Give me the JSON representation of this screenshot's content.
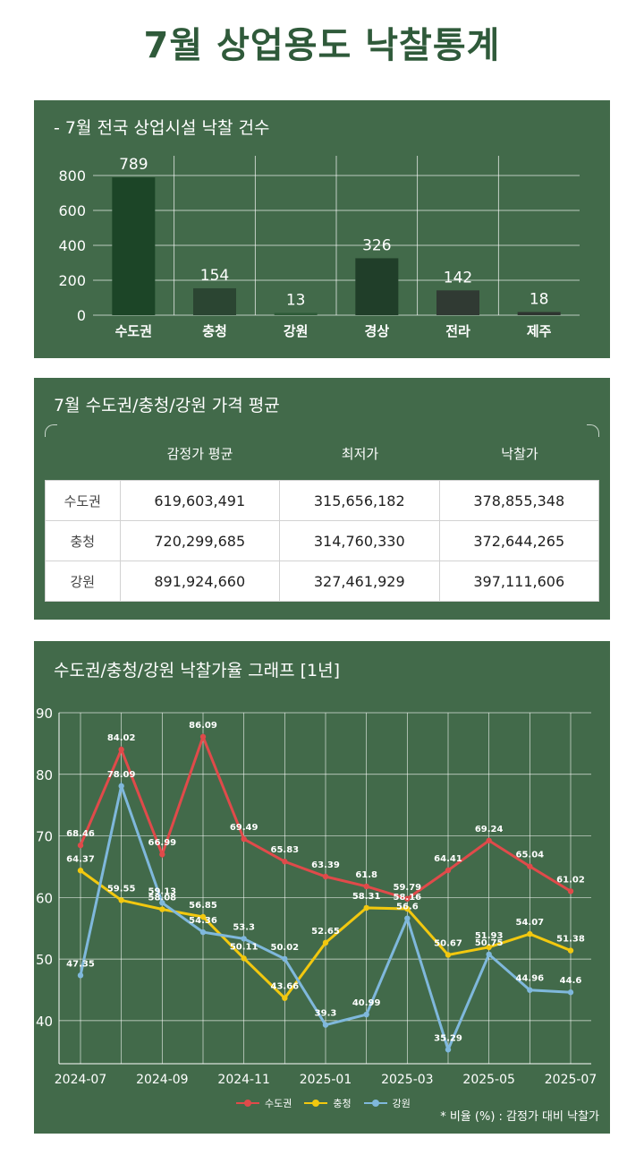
{
  "page_title": "7월 상업용도 낙찰통계",
  "colors": {
    "panel_bg": "#426a4a",
    "title": "#2f5a3a"
  },
  "chart_data": [
    {
      "type": "bar",
      "title": "- 7월 전국 상업시설 낙찰 건수",
      "categories": [
        "수도권",
        "충청",
        "강원",
        "경상",
        "전라",
        "제주"
      ],
      "values": [
        789,
        154,
        13,
        326,
        142,
        18
      ],
      "colors": [
        "#1c4527",
        "#2b4532",
        "#2d5a37",
        "#203e29",
        "#303a33",
        "#2e3530"
      ],
      "ylim": [
        0,
        800
      ],
      "yticks": [
        0,
        200,
        400,
        600,
        800
      ],
      "grid": true
    },
    {
      "type": "table",
      "title": "7월 수도권/충청/강원 가격 평균",
      "columns": [
        "",
        "감정가 평균",
        "최저가",
        "낙찰가"
      ],
      "rows": [
        [
          "수도권",
          "619,603,491",
          "315,656,182",
          "378,855,348"
        ],
        [
          "충청",
          "720,299,685",
          "314,760,330",
          "372,644,265"
        ],
        [
          "강원",
          "891,924,660",
          "327,461,929",
          "397,111,606"
        ]
      ]
    },
    {
      "type": "line",
      "title": "수도권/충청/강원 낙찰가율 그래프 [1년]",
      "x": [
        "2024-07",
        "2024-08",
        "2024-09",
        "2024-10",
        "2024-11",
        "2024-12",
        "2025-01",
        "2025-02",
        "2025-03",
        "2025-04",
        "2025-05",
        "2025-06",
        "2025-07"
      ],
      "xticks": [
        "2024-07",
        "2024-09",
        "2024-11",
        "2025-01",
        "2025-03",
        "2025-05",
        "2025-07"
      ],
      "series": [
        {
          "name": "수도권",
          "color": "#e04a4a",
          "values": [
            68.46,
            84.02,
            66.99,
            86.09,
            69.49,
            65.83,
            63.39,
            61.8,
            59.79,
            64.41,
            69.24,
            65.04,
            61.02
          ]
        },
        {
          "name": "충청",
          "color": "#f2c80f",
          "values": [
            64.37,
            59.55,
            58.08,
            56.85,
            50.11,
            43.66,
            52.65,
            58.31,
            58.16,
            50.67,
            51.93,
            54.07,
            51.38
          ]
        },
        {
          "name": "강원",
          "color": "#7fb8dc",
          "values": [
            47.35,
            78.09,
            59.13,
            54.36,
            53.3,
            50.02,
            39.3,
            40.99,
            56.6,
            35.29,
            50.75,
            44.96,
            44.6
          ]
        }
      ],
      "ylim": [
        33,
        90
      ],
      "yticks": [
        40,
        50,
        60,
        70,
        80,
        90
      ],
      "grid": true,
      "legend": "bottom-center",
      "note": "* 비율 (%) : 감정가 대비 낙찰가"
    }
  ]
}
